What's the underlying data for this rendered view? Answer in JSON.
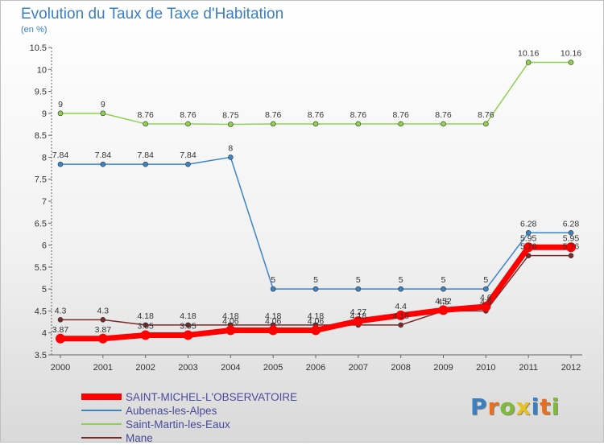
{
  "header": {
    "title": "Evolution du Taux de Taxe d'Habitation",
    "subtitle": "(en %)"
  },
  "logo": {
    "text": "Proxiti",
    "letter_colors": [
      "#3a7fc1",
      "#e86f1d",
      "#7fba3a",
      "#e8c21d",
      "#3a7fc1",
      "#e86f1d",
      "#7fba3a"
    ]
  },
  "chart_data": {
    "type": "line",
    "x": [
      2000,
      2001,
      2002,
      2003,
      2004,
      2005,
      2006,
      2007,
      2008,
      2009,
      2010,
      2011,
      2012
    ],
    "yticks": [
      3.5,
      4,
      4.5,
      5,
      5.5,
      6,
      6.5,
      7,
      7.5,
      8,
      8.5,
      9,
      9.5,
      10,
      10.5
    ],
    "ylim": [
      3.5,
      10.5
    ],
    "legend_position": "bottom-left",
    "grid": false,
    "series": [
      {
        "name": "SAINT-MICHEL-L'OBSERVATOIRE",
        "color": "#ff0000",
        "values": [
          3.87,
          3.87,
          3.95,
          3.95,
          4.06,
          4.06,
          4.06,
          4.27,
          4.4,
          4.52,
          4.6,
          5.95,
          5.95
        ],
        "labels": [
          "3.87",
          "3.87",
          "3.95",
          "3.95",
          "4.06",
          "4.06",
          "4.06",
          "4.27",
          "4.4",
          "4.52",
          "4.6",
          "5.95",
          "5.95"
        ]
      },
      {
        "name": "Aubenas-les-Alpes",
        "color": "#3a85c6",
        "values": [
          7.84,
          7.84,
          7.84,
          7.84,
          8,
          5,
          5,
          5,
          5,
          5,
          5,
          6.28,
          6.28
        ],
        "labels": [
          "7.84",
          "7.84",
          "7.84",
          "7.84",
          "8",
          "5",
          "5",
          "5",
          "5",
          "5",
          "5",
          "6.28",
          "6.28"
        ]
      },
      {
        "name": "Saint-Martin-les-Eaux",
        "color": "#8fd14f",
        "values": [
          9,
          9,
          8.76,
          8.76,
          8.75,
          8.76,
          8.76,
          8.76,
          8.76,
          8.76,
          8.76,
          10.16,
          10.16
        ],
        "labels": [
          "9",
          "9",
          "8.76",
          "8.76",
          "8.75",
          "8.76",
          "8.76",
          "8.76",
          "8.76",
          "8.76",
          "8.76",
          "10.16",
          "10.16"
        ]
      },
      {
        "name": "Mane",
        "color": "#7a2a2a",
        "values": [
          4.3,
          4.3,
          4.18,
          4.18,
          4.18,
          4.18,
          4.18,
          4.18,
          4.18,
          4.5,
          4.5,
          5.76,
          5.76
        ],
        "labels": [
          "4.3",
          "4.3",
          "4.18",
          "4.18",
          "4.18",
          "4.18",
          "4.18",
          "4.18",
          "4.18",
          "4.5",
          "4.5",
          "5.76",
          "5.76"
        ]
      }
    ]
  }
}
